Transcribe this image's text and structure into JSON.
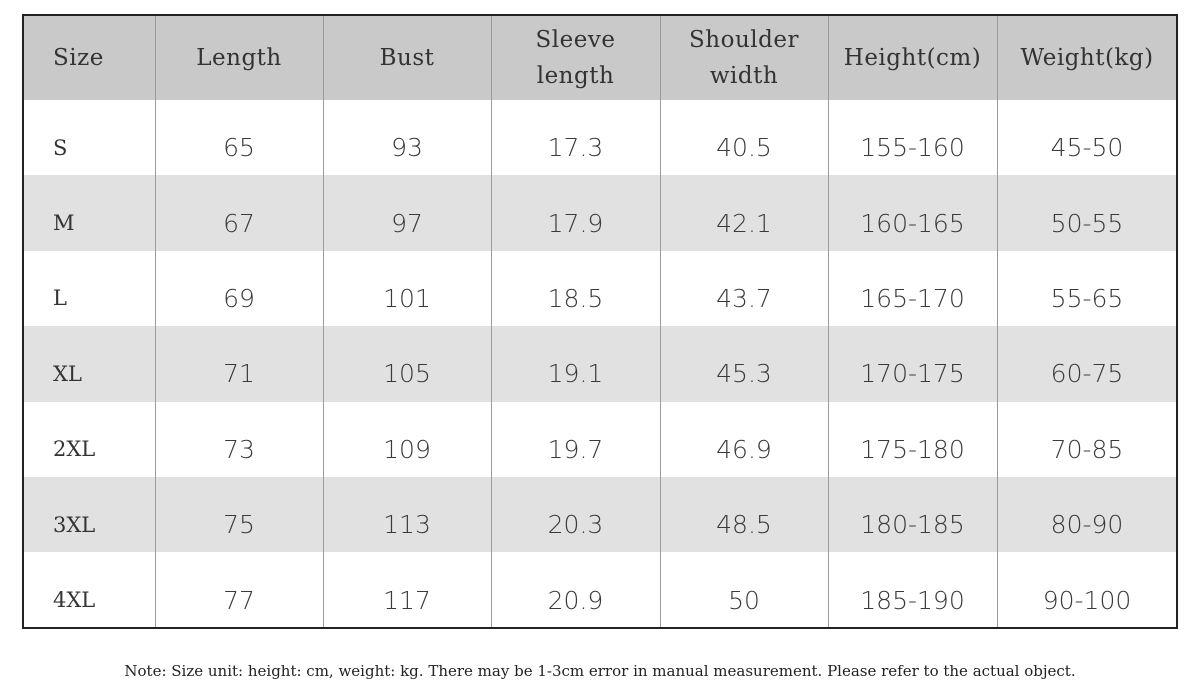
{
  "table": {
    "header": [
      "Size",
      "Length",
      "Bust",
      "Sleeve length",
      "Shoulder width",
      "Height(cm)",
      "Weight(kg)"
    ],
    "rows": [
      [
        "S",
        "65",
        "93",
        "17.3",
        "40.5",
        "155-160",
        "45-50"
      ],
      [
        "M",
        "67",
        "97",
        "17.9",
        "42.1",
        "160-165",
        "50-55"
      ],
      [
        "L",
        "69",
        "101",
        "18.5",
        "43.7",
        "165-170",
        "55-65"
      ],
      [
        "XL",
        "71",
        "105",
        "19.1",
        "45.3",
        "170-175",
        "60-75"
      ],
      [
        "2XL",
        "73",
        "109",
        "19.7",
        "46.9",
        "175-180",
        "70-85"
      ],
      [
        "3XL",
        "75",
        "113",
        "20.3",
        "48.5",
        "180-185",
        "80-90"
      ],
      [
        "4XL",
        "77",
        "117",
        "20.9",
        "50",
        "185-190",
        "90-100"
      ]
    ]
  },
  "note": "Note: Size unit: height: cm, weight: kg. There may be 1-3cm error in manual measurement. Please refer to the actual object."
}
